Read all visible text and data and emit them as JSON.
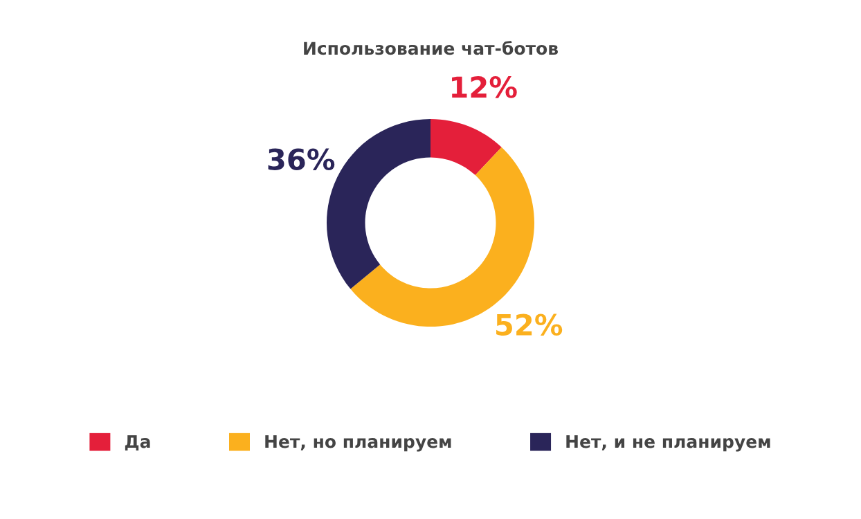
{
  "chart_data": {
    "type": "donut",
    "title": "Использование чат-ботов",
    "categories": [
      "Да",
      "Нет, но планируем",
      "Нет, и не планируем"
    ],
    "values": [
      12,
      52,
      36
    ],
    "colors": [
      "#e41f3a",
      "#fbb01e",
      "#2a2559"
    ],
    "value_labels": [
      "12%",
      "52%",
      "36%"
    ],
    "legend": "bottom"
  }
}
